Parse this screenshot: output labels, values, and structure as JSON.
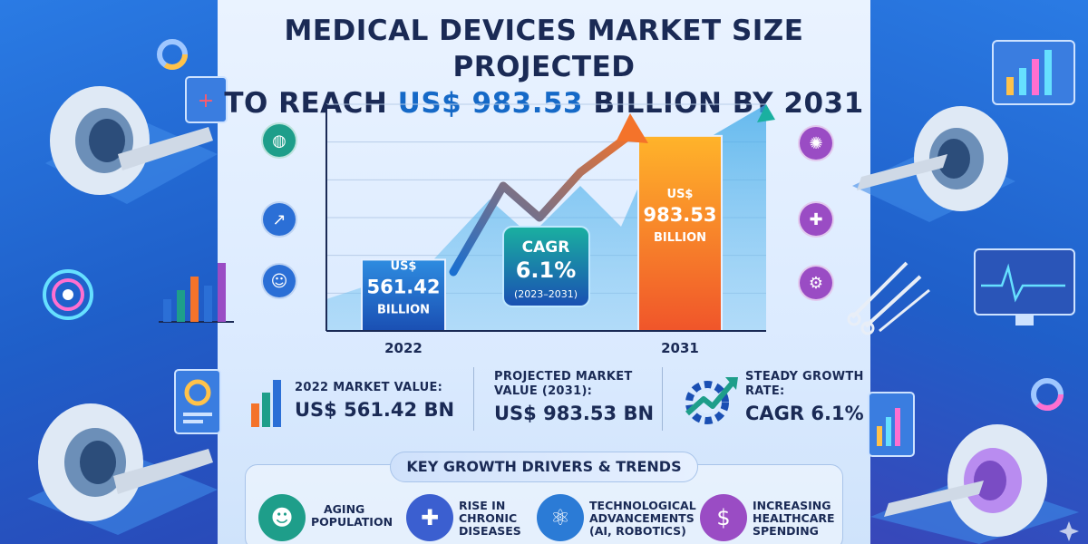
{
  "title": {
    "line1": "MEDICAL DEVICES MARKET SIZE PROJECTED",
    "line2_prefix": "TO REACH ",
    "line2_highlight": "US$ 983.53",
    "line2_suffix": " BILLION BY 2031"
  },
  "chart_data": {
    "type": "bar",
    "title": "Medical Devices Market Size Projected to Reach US$ 983.53 Billion by 2031",
    "categories": [
      "2022",
      "2031"
    ],
    "values": [
      561.42,
      983.53
    ],
    "unit": "US$ Billion",
    "bar_labels": [
      {
        "currency": "US$",
        "amount": "561.42",
        "unit": "BILLION"
      },
      {
        "currency": "US$",
        "amount": "983.53",
        "unit": "BILLION"
      }
    ],
    "ylim": [
      0,
      1200
    ],
    "grid": true,
    "annotation": {
      "label": "CAGR",
      "value": "6.1%",
      "period": "(2023–2031)"
    },
    "colors": {
      "bar_2022": "#1f5fc9",
      "bar_2031": "#f4732a",
      "trend": "#2a9ad8"
    }
  },
  "stats": [
    {
      "label": "2022 MARKET VALUE:",
      "value": "US$ 561.42 BN"
    },
    {
      "label_line1": "PROJECTED MARKET",
      "label_line2": "VALUE (2031):",
      "value": "US$ 983.53 BN"
    },
    {
      "label_line1": "STEADY GROWTH",
      "label_line2": "RATE:",
      "value": "CAGR 6.1%"
    }
  ],
  "drivers": {
    "title": "KEY GROWTH DRIVERS & TRENDS",
    "items": [
      {
        "line1": "AGING",
        "line2": "POPULATION",
        "line3": "",
        "icon": "people-icon",
        "color": "#1e9e8a"
      },
      {
        "line1": "RISE IN",
        "line2": "CHRONIC",
        "line3": "DISEASES",
        "icon": "bandage-icon",
        "color": "#3b5fd0"
      },
      {
        "line1": "TECHNOLOGICAL",
        "line2": "ADVANCEMENTS",
        "line3": "(AI, ROBOTICS)",
        "icon": "ai-icon",
        "color": "#2b7bd6"
      },
      {
        "line1": "INCREASING",
        "line2": "HEALTHCARE",
        "line3": "SPENDING",
        "icon": "money-hand-icon",
        "color": "#9a4cc4"
      }
    ]
  }
}
